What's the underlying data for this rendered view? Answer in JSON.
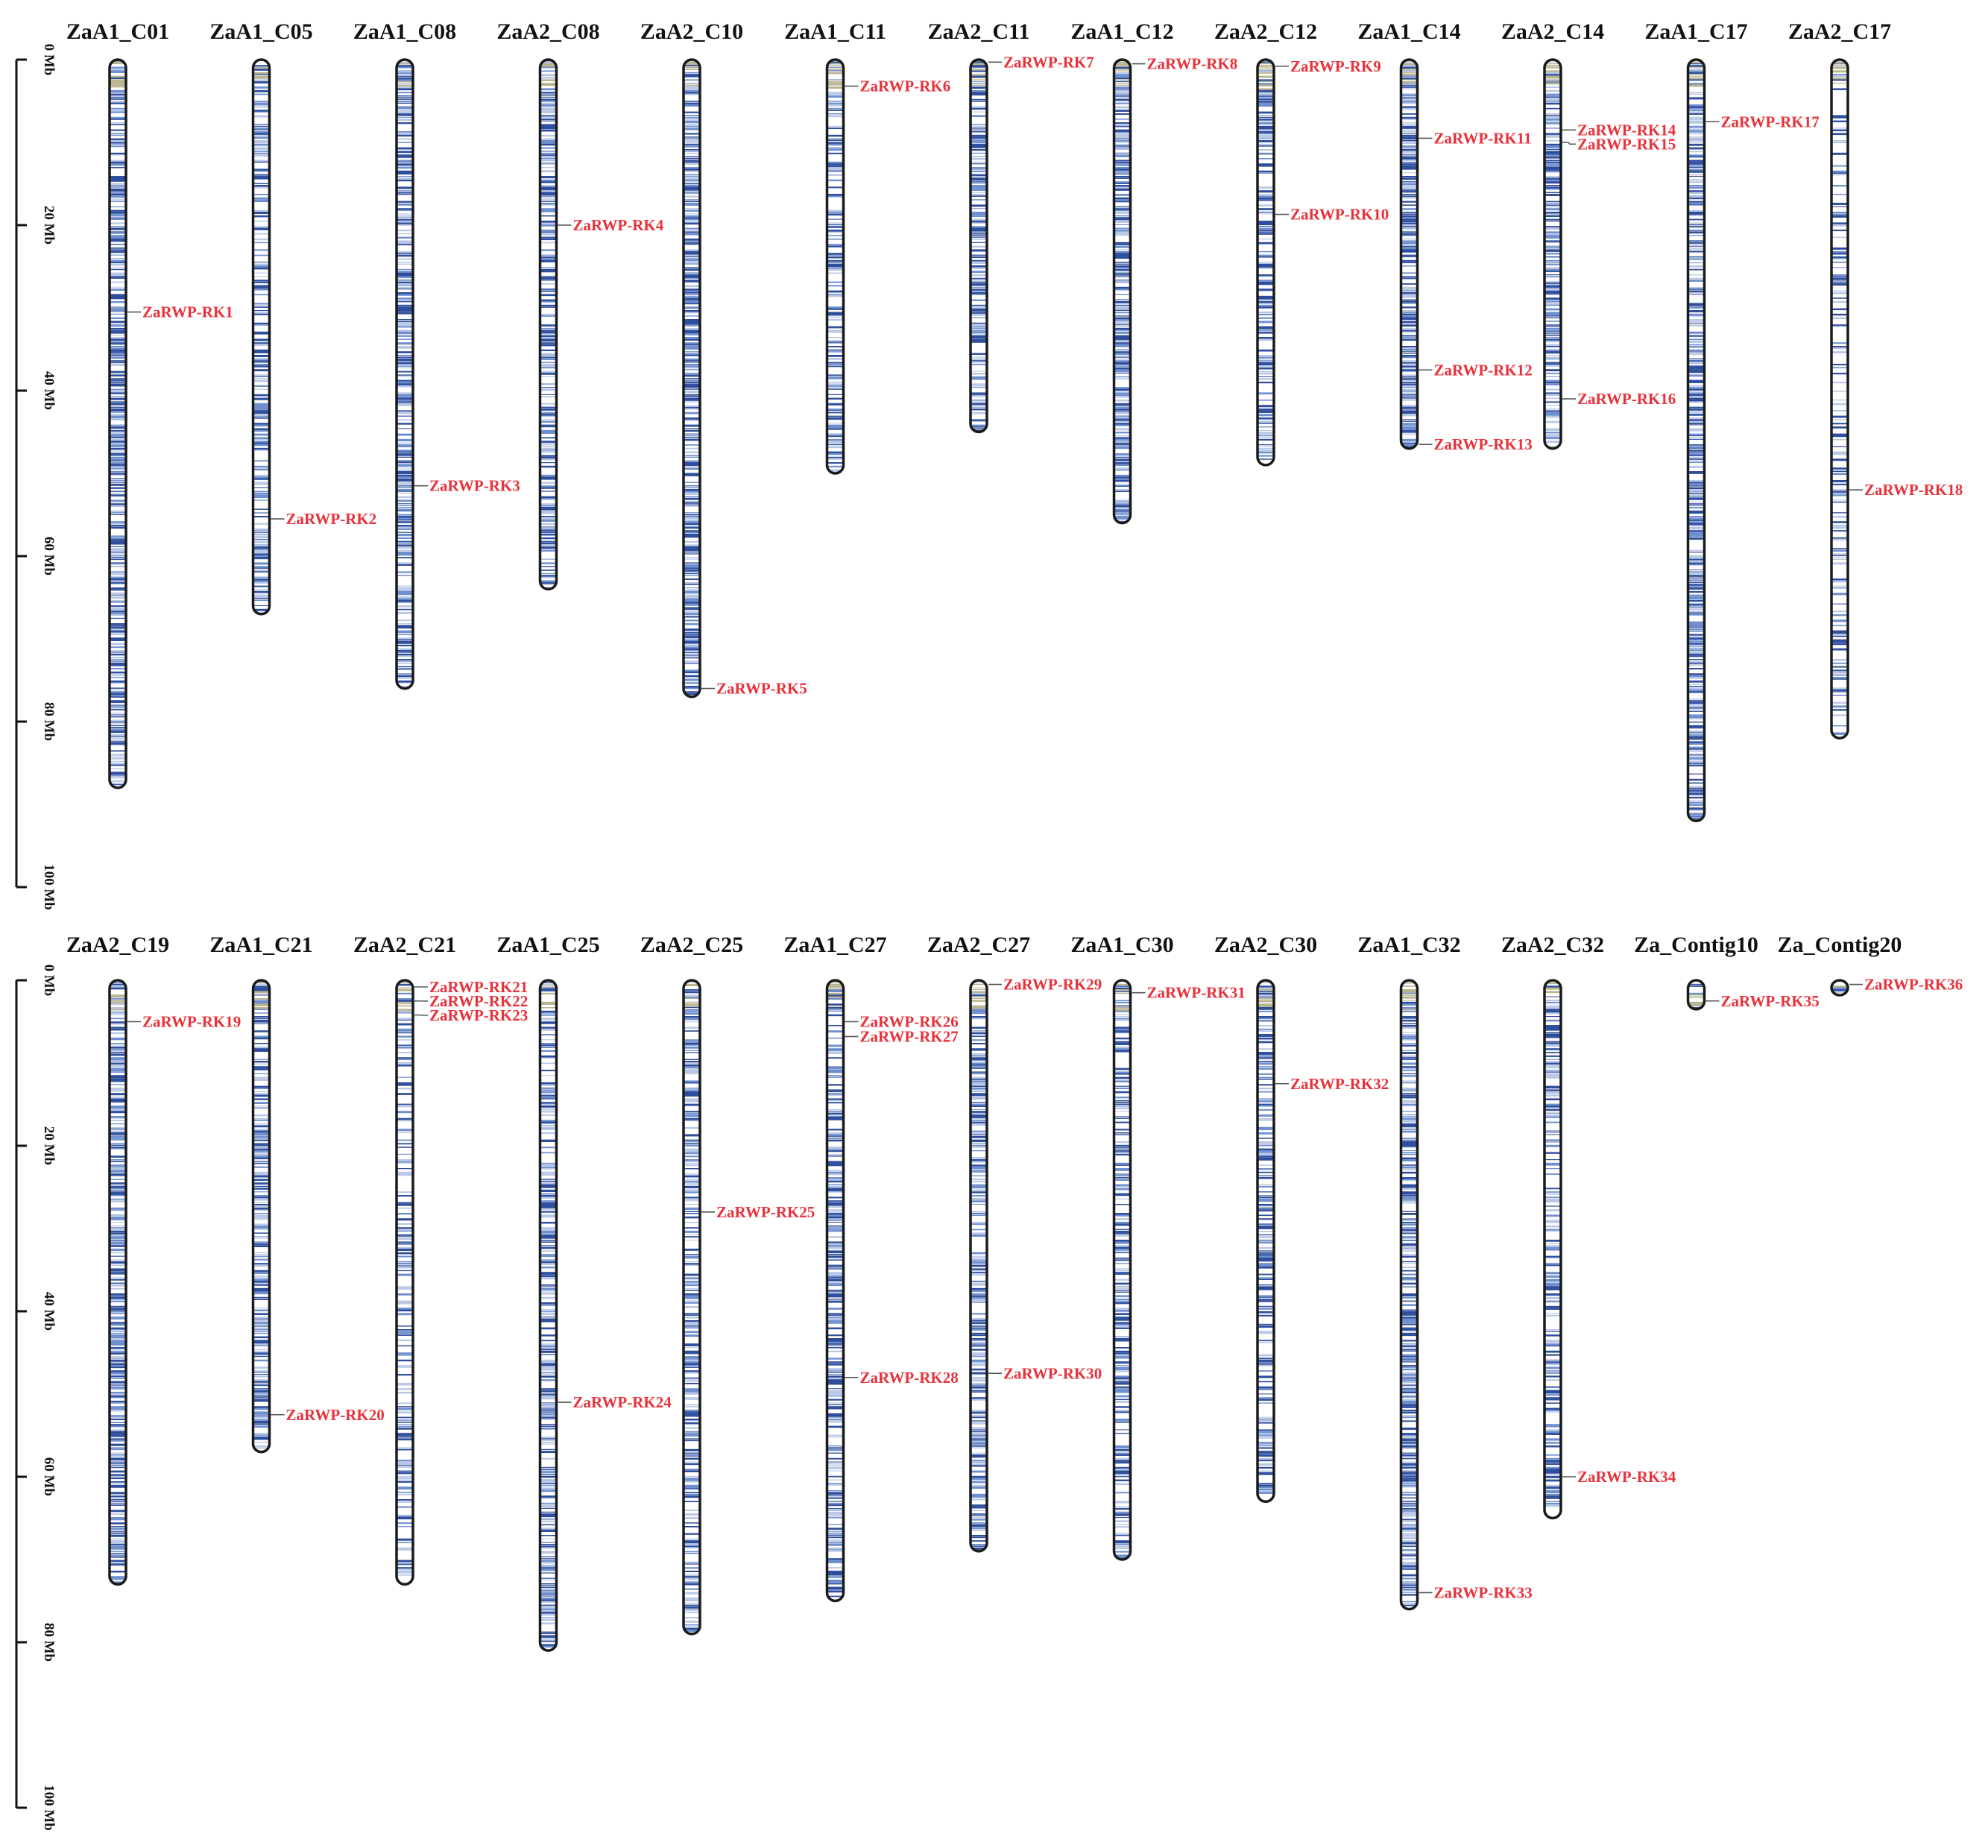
{
  "chart_data": {
    "type": "chromosome-map",
    "title": "",
    "axis": {
      "unit": "Mb",
      "ticks": [
        0,
        20,
        40,
        60,
        80,
        100
      ],
      "tick_labels": [
        "0 Mb",
        "20 Mb",
        "40 Mb",
        "60 Mb",
        "80 Mb",
        "100 Mb"
      ],
      "range": [
        0,
        100
      ]
    },
    "colors": {
      "label": "#e8313a",
      "band_dark": "#2f4f9e",
      "band_mid": "#6f8fcf",
      "band_light": "#b9c8e6",
      "band_tan": "#b9b38f",
      "outline": "#1a1a1a"
    },
    "panels": [
      {
        "chromosomes": [
          {
            "name": "ZaA1_C01",
            "length": 88,
            "density": 0.72,
            "genes": [
              {
                "label": "ZaRWP-RK1",
                "pos": 30.5
              }
            ]
          },
          {
            "name": "ZaA1_C05",
            "length": 67,
            "density": 0.55,
            "genes": [
              {
                "label": "ZaRWP-RK2",
                "pos": 55.5
              }
            ]
          },
          {
            "name": "ZaA1_C08",
            "length": 76,
            "density": 0.7,
            "genes": [
              {
                "label": "ZaRWP-RK3",
                "pos": 51.5
              }
            ]
          },
          {
            "name": "ZaA2_C08",
            "length": 64,
            "density": 0.6,
            "genes": [
              {
                "label": "ZaRWP-RK4",
                "pos": 20.0
              }
            ]
          },
          {
            "name": "ZaA2_C10",
            "length": 77,
            "density": 0.75,
            "genes": [
              {
                "label": "ZaRWP-RK5",
                "pos": 76.0
              }
            ]
          },
          {
            "name": "ZaA1_C11",
            "length": 50,
            "density": 0.5,
            "genes": [
              {
                "label": "ZaRWP-RK6",
                "pos": 3.2
              }
            ]
          },
          {
            "name": "ZaA2_C11",
            "length": 45,
            "density": 0.65,
            "genes": [
              {
                "label": "ZaRWP-RK7",
                "pos": 0.3
              }
            ]
          },
          {
            "name": "ZaA1_C12",
            "length": 56,
            "density": 0.75,
            "genes": [
              {
                "label": "ZaRWP-RK8",
                "pos": 0.5
              }
            ]
          },
          {
            "name": "ZaA2_C12",
            "length": 49,
            "density": 0.6,
            "genes": [
              {
                "label": "ZaRWP-RK9",
                "pos": 0.8
              },
              {
                "label": "ZaRWP-RK10",
                "pos": 18.7
              }
            ]
          },
          {
            "name": "ZaA1_C14",
            "length": 47,
            "density": 0.72,
            "genes": [
              {
                "label": "ZaRWP-RK11",
                "pos": 9.5
              },
              {
                "label": "ZaRWP-RK12",
                "pos": 37.5
              },
              {
                "label": "ZaRWP-RK13",
                "pos": 46.5
              }
            ]
          },
          {
            "name": "ZaA2_C14",
            "length": 47,
            "density": 0.7,
            "genes": [
              {
                "label": "ZaRWP-RK14",
                "pos": 8.5
              },
              {
                "label": "ZaRWP-RK15",
                "pos": 10.0
              },
              {
                "label": "ZaRWP-RK16",
                "pos": 41.0
              }
            ]
          },
          {
            "name": "ZaA1_C17",
            "length": 92,
            "density": 0.7,
            "genes": [
              {
                "label": "ZaRWP-RK17",
                "pos": 7.5
              }
            ]
          },
          {
            "name": "ZaA2_C17",
            "length": 82,
            "density": 0.4,
            "genes": [
              {
                "label": "ZaRWP-RK18",
                "pos": 52.0
              }
            ]
          }
        ]
      },
      {
        "chromosomes": [
          {
            "name": "ZaA2_C19",
            "length": 73,
            "density": 0.72,
            "genes": [
              {
                "label": "ZaRWP-RK19",
                "pos": 5.0
              }
            ]
          },
          {
            "name": "ZaA1_C21",
            "length": 57,
            "density": 0.65,
            "genes": [
              {
                "label": "ZaRWP-RK20",
                "pos": 52.5
              }
            ]
          },
          {
            "name": "ZaA2_C21",
            "length": 73,
            "density": 0.45,
            "genes": [
              {
                "label": "ZaRWP-RK21",
                "pos": 0.8
              },
              {
                "label": "ZaRWP-RK22",
                "pos": 2.5
              },
              {
                "label": "ZaRWP-RK23",
                "pos": 4.2
              }
            ]
          },
          {
            "name": "ZaA1_C25",
            "length": 81,
            "density": 0.62,
            "genes": [
              {
                "label": "ZaRWP-RK24",
                "pos": 51.0
              }
            ]
          },
          {
            "name": "ZaA2_C25",
            "length": 79,
            "density": 0.62,
            "genes": [
              {
                "label": "ZaRWP-RK25",
                "pos": 28.0
              }
            ]
          },
          {
            "name": "ZaA1_C27",
            "length": 75,
            "density": 0.6,
            "genes": [
              {
                "label": "ZaRWP-RK26",
                "pos": 5.0
              },
              {
                "label": "ZaRWP-RK27",
                "pos": 6.8
              },
              {
                "label": "ZaRWP-RK28",
                "pos": 48.0
              }
            ]
          },
          {
            "name": "ZaA2_C27",
            "length": 69,
            "density": 0.65,
            "genes": [
              {
                "label": "ZaRWP-RK29",
                "pos": 0.5
              },
              {
                "label": "ZaRWP-RK30",
                "pos": 47.5
              }
            ]
          },
          {
            "name": "ZaA1_C30",
            "length": 70,
            "density": 0.55,
            "genes": [
              {
                "label": "ZaRWP-RK31",
                "pos": 1.5
              }
            ]
          },
          {
            "name": "ZaA2_C30",
            "length": 63,
            "density": 0.6,
            "genes": [
              {
                "label": "ZaRWP-RK32",
                "pos": 12.5
              }
            ]
          },
          {
            "name": "ZaA1_C32",
            "length": 76,
            "density": 0.72,
            "genes": [
              {
                "label": "ZaRWP-RK33",
                "pos": 74.0
              }
            ]
          },
          {
            "name": "ZaA2_C32",
            "length": 65,
            "density": 0.45,
            "genes": [
              {
                "label": "ZaRWP-RK34",
                "pos": 60.0
              }
            ]
          },
          {
            "name": "Za_Contig10",
            "length": 3.5,
            "density": 0.5,
            "genes": [
              {
                "label": "ZaRWP-RK35",
                "pos": 2.5
              }
            ]
          },
          {
            "name": "Za_Contig20",
            "length": 1.8,
            "density": 0.5,
            "genes": [
              {
                "label": "ZaRWP-RK36",
                "pos": 0.5
              }
            ]
          }
        ]
      }
    ]
  }
}
